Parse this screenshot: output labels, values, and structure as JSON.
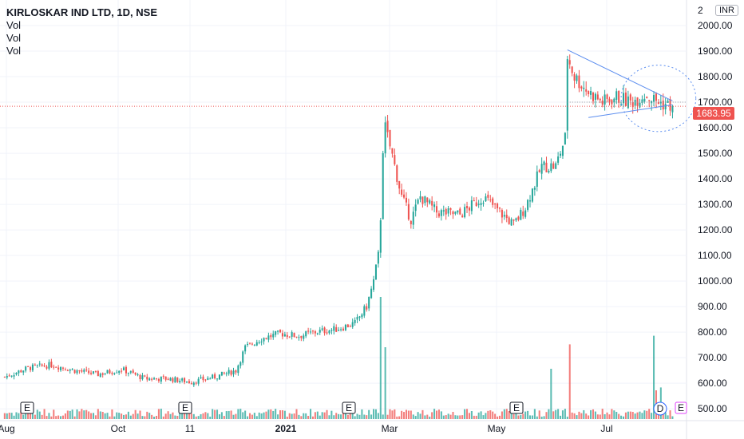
{
  "legend": {
    "title": "KIRLOSKAR IND LTD, 1D, NSE",
    "indicators": [
      "Vol",
      "Vol",
      "Vol"
    ]
  },
  "currency": "INR",
  "last_price": "1683.95",
  "colors": {
    "up": "#26a69a",
    "down": "#ef5350",
    "trendline": "#5b8def",
    "price_line": "#ef5350",
    "grid": "#f0f3fa"
  },
  "event_markers": [
    "E",
    "E",
    "E",
    "E",
    "E"
  ],
  "dividend_marker": "D",
  "chart_data": {
    "type": "candlestick",
    "y_axis": {
      "ticks": [
        "2000.00",
        "1900.00",
        "1800.00",
        "1700.00",
        "1600.00",
        "1500.00",
        "1400.00",
        "1300.00",
        "1200.00",
        "1100.00",
        "1000.00",
        "900.00",
        "800.00",
        "700.00",
        "600.00",
        "500.00"
      ],
      "top_label_partial": "2",
      "range": [
        460,
        2100
      ]
    },
    "x_axis": {
      "labels": [
        "Aug",
        "Oct",
        "11",
        "2021",
        "Mar",
        "May",
        "Jul"
      ]
    },
    "price_path": [
      [
        0,
        625
      ],
      [
        10,
        660
      ],
      [
        20,
        672
      ],
      [
        30,
        650
      ],
      [
        40,
        635
      ],
      [
        50,
        655
      ],
      [
        60,
        618
      ],
      [
        70,
        618
      ],
      [
        80,
        605
      ],
      [
        90,
        625
      ],
      [
        99,
        650
      ],
      [
        103,
        740
      ],
      [
        110,
        775
      ],
      [
        118,
        795
      ],
      [
        126,
        785
      ],
      [
        134,
        802
      ],
      [
        142,
        812
      ],
      [
        150,
        835
      ],
      [
        155,
        900
      ],
      [
        158,
        1000
      ],
      [
        160,
        1100
      ],
      [
        161,
        1250
      ],
      [
        162,
        1520
      ],
      [
        163,
        1600
      ],
      [
        166,
        1490
      ],
      [
        170,
        1330
      ],
      [
        174,
        1240
      ],
      [
        178,
        1330
      ],
      [
        185,
        1270
      ],
      [
        195,
        1260
      ],
      [
        205,
        1330
      ],
      [
        212,
        1270
      ],
      [
        218,
        1220
      ],
      [
        223,
        1290
      ],
      [
        230,
        1450
      ],
      [
        236,
        1450
      ],
      [
        240,
        1560
      ],
      [
        241,
        1880
      ],
      [
        244,
        1800
      ],
      [
        250,
        1740
      ],
      [
        256,
        1700
      ],
      [
        262,
        1720
      ],
      [
        268,
        1700
      ],
      [
        274,
        1730
      ],
      [
        280,
        1700
      ],
      [
        286,
        1683.95
      ]
    ],
    "volume_spikes": [
      [
        161,
        0.85
      ],
      [
        163,
        0.5
      ],
      [
        234,
        0.35
      ],
      [
        242,
        0.52
      ],
      [
        278,
        0.58
      ],
      [
        279,
        0.2
      ],
      [
        281,
        0.22
      ]
    ],
    "annotations": {
      "triangle_upper": [
        [
          241,
          1905
        ],
        [
          286,
          1705
        ]
      ],
      "triangle_lower": [
        [
          250,
          1640
        ],
        [
          286,
          1690
        ]
      ],
      "circle_center": [
        280,
        1715
      ],
      "circle_radius_days": 16,
      "circle_radius_value": 130
    }
  }
}
